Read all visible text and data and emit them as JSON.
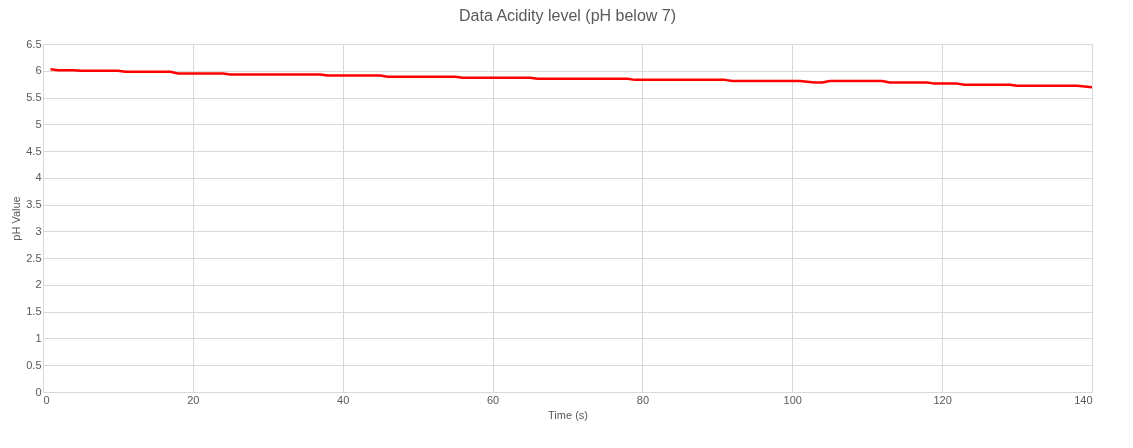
{
  "chart_data": {
    "type": "line",
    "title": "Data Acidity level (pH below 7)",
    "xlabel": "Time (s)",
    "ylabel": "pH Value",
    "x": [
      1,
      2,
      4,
      5,
      10,
      11,
      17,
      18,
      24,
      25,
      37,
      38,
      45,
      46,
      55,
      56,
      65,
      66,
      78,
      79,
      91,
      92,
      101,
      103,
      104,
      105,
      112,
      113,
      118,
      119,
      122,
      123,
      129,
      130,
      138,
      140
    ],
    "series": [
      {
        "color": "#ff0000",
        "values": [
          6.03,
          6.01,
          6.01,
          6.0,
          6.0,
          5.98,
          5.98,
          5.95,
          5.95,
          5.93,
          5.93,
          5.91,
          5.91,
          5.89,
          5.89,
          5.87,
          5.87,
          5.85,
          5.85,
          5.83,
          5.83,
          5.81,
          5.81,
          5.78,
          5.78,
          5.81,
          5.81,
          5.78,
          5.78,
          5.76,
          5.76,
          5.74,
          5.74,
          5.72,
          5.72,
          5.69
        ]
      }
    ],
    "xlim": [
      0,
      140
    ],
    "xticks": [
      0,
      20,
      40,
      60,
      80,
      100,
      120,
      140
    ],
    "ylim": [
      0,
      6.5
    ],
    "yticks": [
      0,
      0.5,
      1,
      1.5,
      2,
      2.5,
      3,
      3.5,
      4,
      4.5,
      5,
      5.5,
      6,
      6.5
    ],
    "grid": true,
    "marker": "none",
    "line_style": "solid"
  }
}
